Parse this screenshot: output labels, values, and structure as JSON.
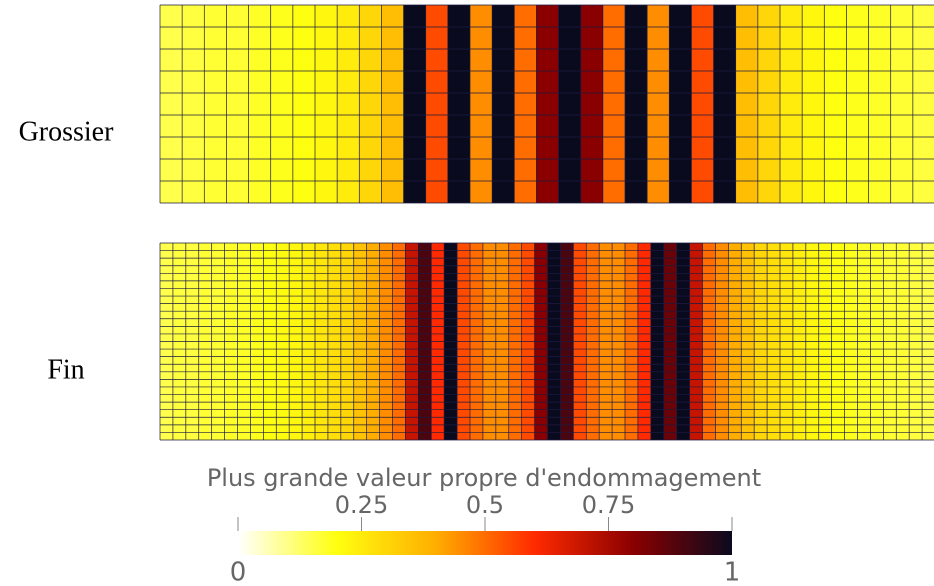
{
  "panels": [
    {
      "label": "Grossier",
      "values": [
        0.15,
        0.16,
        0.17,
        0.17,
        0.18,
        0.19,
        0.2,
        0.22,
        0.25,
        0.3,
        0.36,
        1,
        0.55,
        1,
        0.45,
        1,
        0.5,
        0.8,
        1,
        0.8,
        0.5,
        1,
        0.45,
        1,
        0.55,
        1,
        0.36,
        0.3,
        0.25,
        0.22,
        0.2,
        0.19,
        0.18,
        0.17,
        0.16
      ]
    },
    {
      "label": "Fin",
      "values": [
        0.15,
        0.16,
        0.16,
        0.17,
        0.17,
        0.18,
        0.18,
        0.19,
        0.2,
        0.21,
        0.22,
        0.24,
        0.26,
        0.28,
        0.3,
        0.35,
        0.4,
        0.45,
        0.5,
        0.7,
        0.9,
        0.6,
        1,
        0.55,
        0.5,
        0.45,
        0.45,
        0.5,
        0.55,
        0.8,
        1,
        0.9,
        0.55,
        0.5,
        0.45,
        0.45,
        0.5,
        0.6,
        1,
        0.85,
        1,
        0.7,
        0.5,
        0.45,
        0.4,
        0.35,
        0.3,
        0.28,
        0.26,
        0.24,
        0.22,
        0.21,
        0.2,
        0.19,
        0.18,
        0.18,
        0.17,
        0.17,
        0.16,
        0.15
      ]
    }
  ],
  "colorbar": {
    "title": "Plus grande valeur propre d'endommagement",
    "lim": [
      0,
      1
    ],
    "ticks": [
      0,
      0.25,
      0.5,
      0.75,
      1
    ],
    "colormap": [
      "#ffffff",
      "#ffff10",
      "#ffae00",
      "#ff2a00",
      "#8a0000",
      "#0a0a1e"
    ]
  }
}
